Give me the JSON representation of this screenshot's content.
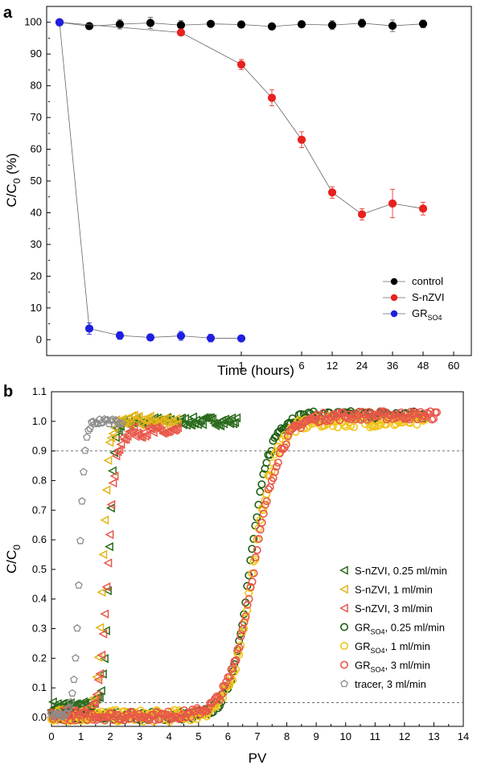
{
  "chart_data": [
    {
      "panel": "a",
      "type": "line",
      "xlabel": "Time (hours)",
      "ylabel_main": "C/C",
      "ylabel_sub": "0",
      "ylabel_unit": " (%)",
      "ylim": [
        -5,
        105
      ],
      "yticks": [
        0,
        10,
        20,
        30,
        40,
        50,
        60,
        70,
        80,
        90,
        100
      ],
      "xticks": [
        {
          "value": 1,
          "label": "1"
        },
        {
          "value": 6,
          "label": "6"
        },
        {
          "value": 12,
          "label": "12"
        },
        {
          "value": 24,
          "label": "24"
        },
        {
          "value": 36,
          "label": "36"
        },
        {
          "value": 48,
          "label": "48"
        },
        {
          "value": 60,
          "label": "60"
        }
      ],
      "x_scale": "mixed: log-like spacing below 1 hour, then 1, 6, 12, 24, 36, 48, 60 hours",
      "legend_position": "bottom-right",
      "series": [
        {
          "name": "control",
          "color": "#000000",
          "points": [
            {
              "pos": 0,
              "y": 100,
              "err": 0.5
            },
            {
              "pos": 1,
              "y": 98.8,
              "err": 1
            },
            {
              "pos": 2,
              "y": 99.4,
              "err": 1.5
            },
            {
              "pos": 3,
              "y": 99.8,
              "err": 1.8
            },
            {
              "pos": 4,
              "y": 99.1,
              "err": 1.5
            },
            {
              "pos": 5,
              "y": 99.5,
              "err": 0.8
            },
            {
              "pos": 6,
              "y": 99.3,
              "err": 0.8
            },
            {
              "pos": 7,
              "y": 98.7,
              "err": 0.7
            },
            {
              "pos": 8,
              "y": 99.4,
              "err": 0.8
            },
            {
              "pos": 9,
              "y": 99.1,
              "err": 1.4
            },
            {
              "pos": 10,
              "y": 99.7,
              "err": 1.3
            },
            {
              "pos": 11,
              "y": 98.9,
              "err": 1.8
            },
            {
              "pos": 12,
              "y": 99.5,
              "err": 1.2
            }
          ]
        },
        {
          "name": "S-nZVI",
          "name_sub": "",
          "color": "#e8211f",
          "points": [
            {
              "pos": 0,
              "y": 100,
              "err": 0.5
            },
            {
              "pos": 4,
              "y": 96.8,
              "err": 0.8
            },
            {
              "pos": 6,
              "y": 86.7,
              "err": 1.6
            },
            {
              "pos": 7,
              "y": 76.2,
              "err": 2.5
            },
            {
              "pos": 8,
              "y": 63,
              "err": 2.5
            },
            {
              "pos": 9,
              "y": 46.4,
              "err": 1.8
            },
            {
              "pos": 10,
              "y": 39.5,
              "err": 1.8
            },
            {
              "pos": 11,
              "y": 42.9,
              "err": 4.5
            },
            {
              "pos": 12,
              "y": 41.3,
              "err": 2
            }
          ]
        },
        {
          "name": "GR",
          "name_sub": "SO4",
          "color": "#1f1fe0",
          "points": [
            {
              "pos": 0,
              "y": 100,
              "err": 0.5
            },
            {
              "pos": 1,
              "y": 3.5,
              "err": 1.8
            },
            {
              "pos": 2,
              "y": 1.3,
              "err": 1.2
            },
            {
              "pos": 3,
              "y": 0.7,
              "err": 1
            },
            {
              "pos": 4,
              "y": 1.2,
              "err": 1.4
            },
            {
              "pos": 5,
              "y": 0.5,
              "err": 1.2
            },
            {
              "pos": 6,
              "y": 0.4,
              "err": 0.8
            }
          ]
        }
      ]
    },
    {
      "panel": "b",
      "type": "scatter",
      "xlabel": "PV",
      "ylabel_main": "C/C",
      "ylabel_sub": "0",
      "xlim": [
        0,
        14
      ],
      "ylim": [
        -0.03,
        1.1
      ],
      "xticks": [
        0,
        1,
        2,
        3,
        4,
        5,
        6,
        7,
        8,
        9,
        10,
        11,
        12,
        13,
        14
      ],
      "yticks": [
        "0.0",
        "0.1",
        "0.2",
        "0.3",
        "0.4",
        "0.5",
        "0.6",
        "0.7",
        "0.8",
        "0.9",
        "1.0",
        "1.1"
      ],
      "reference_lines": [
        0.9,
        0.05
      ],
      "legend_position": "right",
      "series": [
        {
          "name": "S-nZVI, 0.25 ml/min",
          "label_main": "S-nZVI",
          "label_sub": "",
          "label_rest": ", 0.25 ml/min",
          "marker": "triangle-left",
          "color": "#2a6b1c",
          "x0": 0,
          "xs": 1.95,
          "w": 0.09,
          "xEnd": 6.3,
          "y0": 0.04,
          "jitter": 0.015
        },
        {
          "name": "S-nZVI, 1 ml/min",
          "label_main": "S-nZVI",
          "label_sub": "",
          "label_rest": ", 1 ml/min",
          "marker": "triangle-left",
          "color": "#e3b41a",
          "x0": 0,
          "xs": 1.75,
          "w": 0.1,
          "xEnd": 4.3,
          "y0": 0.01,
          "jitter": 0.02
        },
        {
          "name": "S-nZVI, 3 ml/min",
          "label_main": "S-nZVI",
          "label_sub": "",
          "label_rest": ", 3 ml/min",
          "marker": "triangle-left",
          "color": "#e8574a",
          "x0": 0,
          "xs": 1.9,
          "w": 0.14,
          "yMax": 0.965,
          "xEnd": 4.3,
          "y0": 0.01,
          "jitter": 0.018
        },
        {
          "name": "GRSO4, 0.25 ml/min",
          "label_main": "GR",
          "label_sub": "SO4",
          "label_rest": ", 0.25 ml/min",
          "marker": "circle",
          "color": "#1f5e14",
          "x0": 0,
          "xs": 6.75,
          "w": 0.34,
          "yMax": 1.02,
          "xEnd": 12.7,
          "y0": 0.005,
          "jitter": 0.015
        },
        {
          "name": "GRSO4, 1 ml/min",
          "label_main": "GR",
          "label_sub": "SO4",
          "label_rest": ", 1 ml/min",
          "marker": "circle",
          "color": "#f0c419",
          "x0": 0,
          "xs": 6.85,
          "w": 0.38,
          "yMax": 1.0,
          "xEnd": 12.7,
          "y0": 0.005,
          "jitter": 0.02
        },
        {
          "name": "GRSO4, 3 ml/min",
          "label_main": "GR",
          "label_sub": "SO4",
          "label_rest": ", 3 ml/min",
          "marker": "circle",
          "color": "#e8574a",
          "x0": 0,
          "xs": 6.9,
          "w": 0.45,
          "yMax": 1.02,
          "xEnd": 13.1,
          "y0": 0.005,
          "jitter": 0.015
        },
        {
          "name": "tracer, 3 ml/min",
          "label_main": "tracer",
          "label_sub": "",
          "label_rest": ", 3 ml/min",
          "marker": "pentagon",
          "color": "#8c8c8c",
          "x0": 0,
          "xs": 0.95,
          "w": 0.09,
          "yMax": 1.0,
          "xEnd": 2.4,
          "y0": 0.01,
          "jitter": 0.01
        }
      ]
    }
  ]
}
